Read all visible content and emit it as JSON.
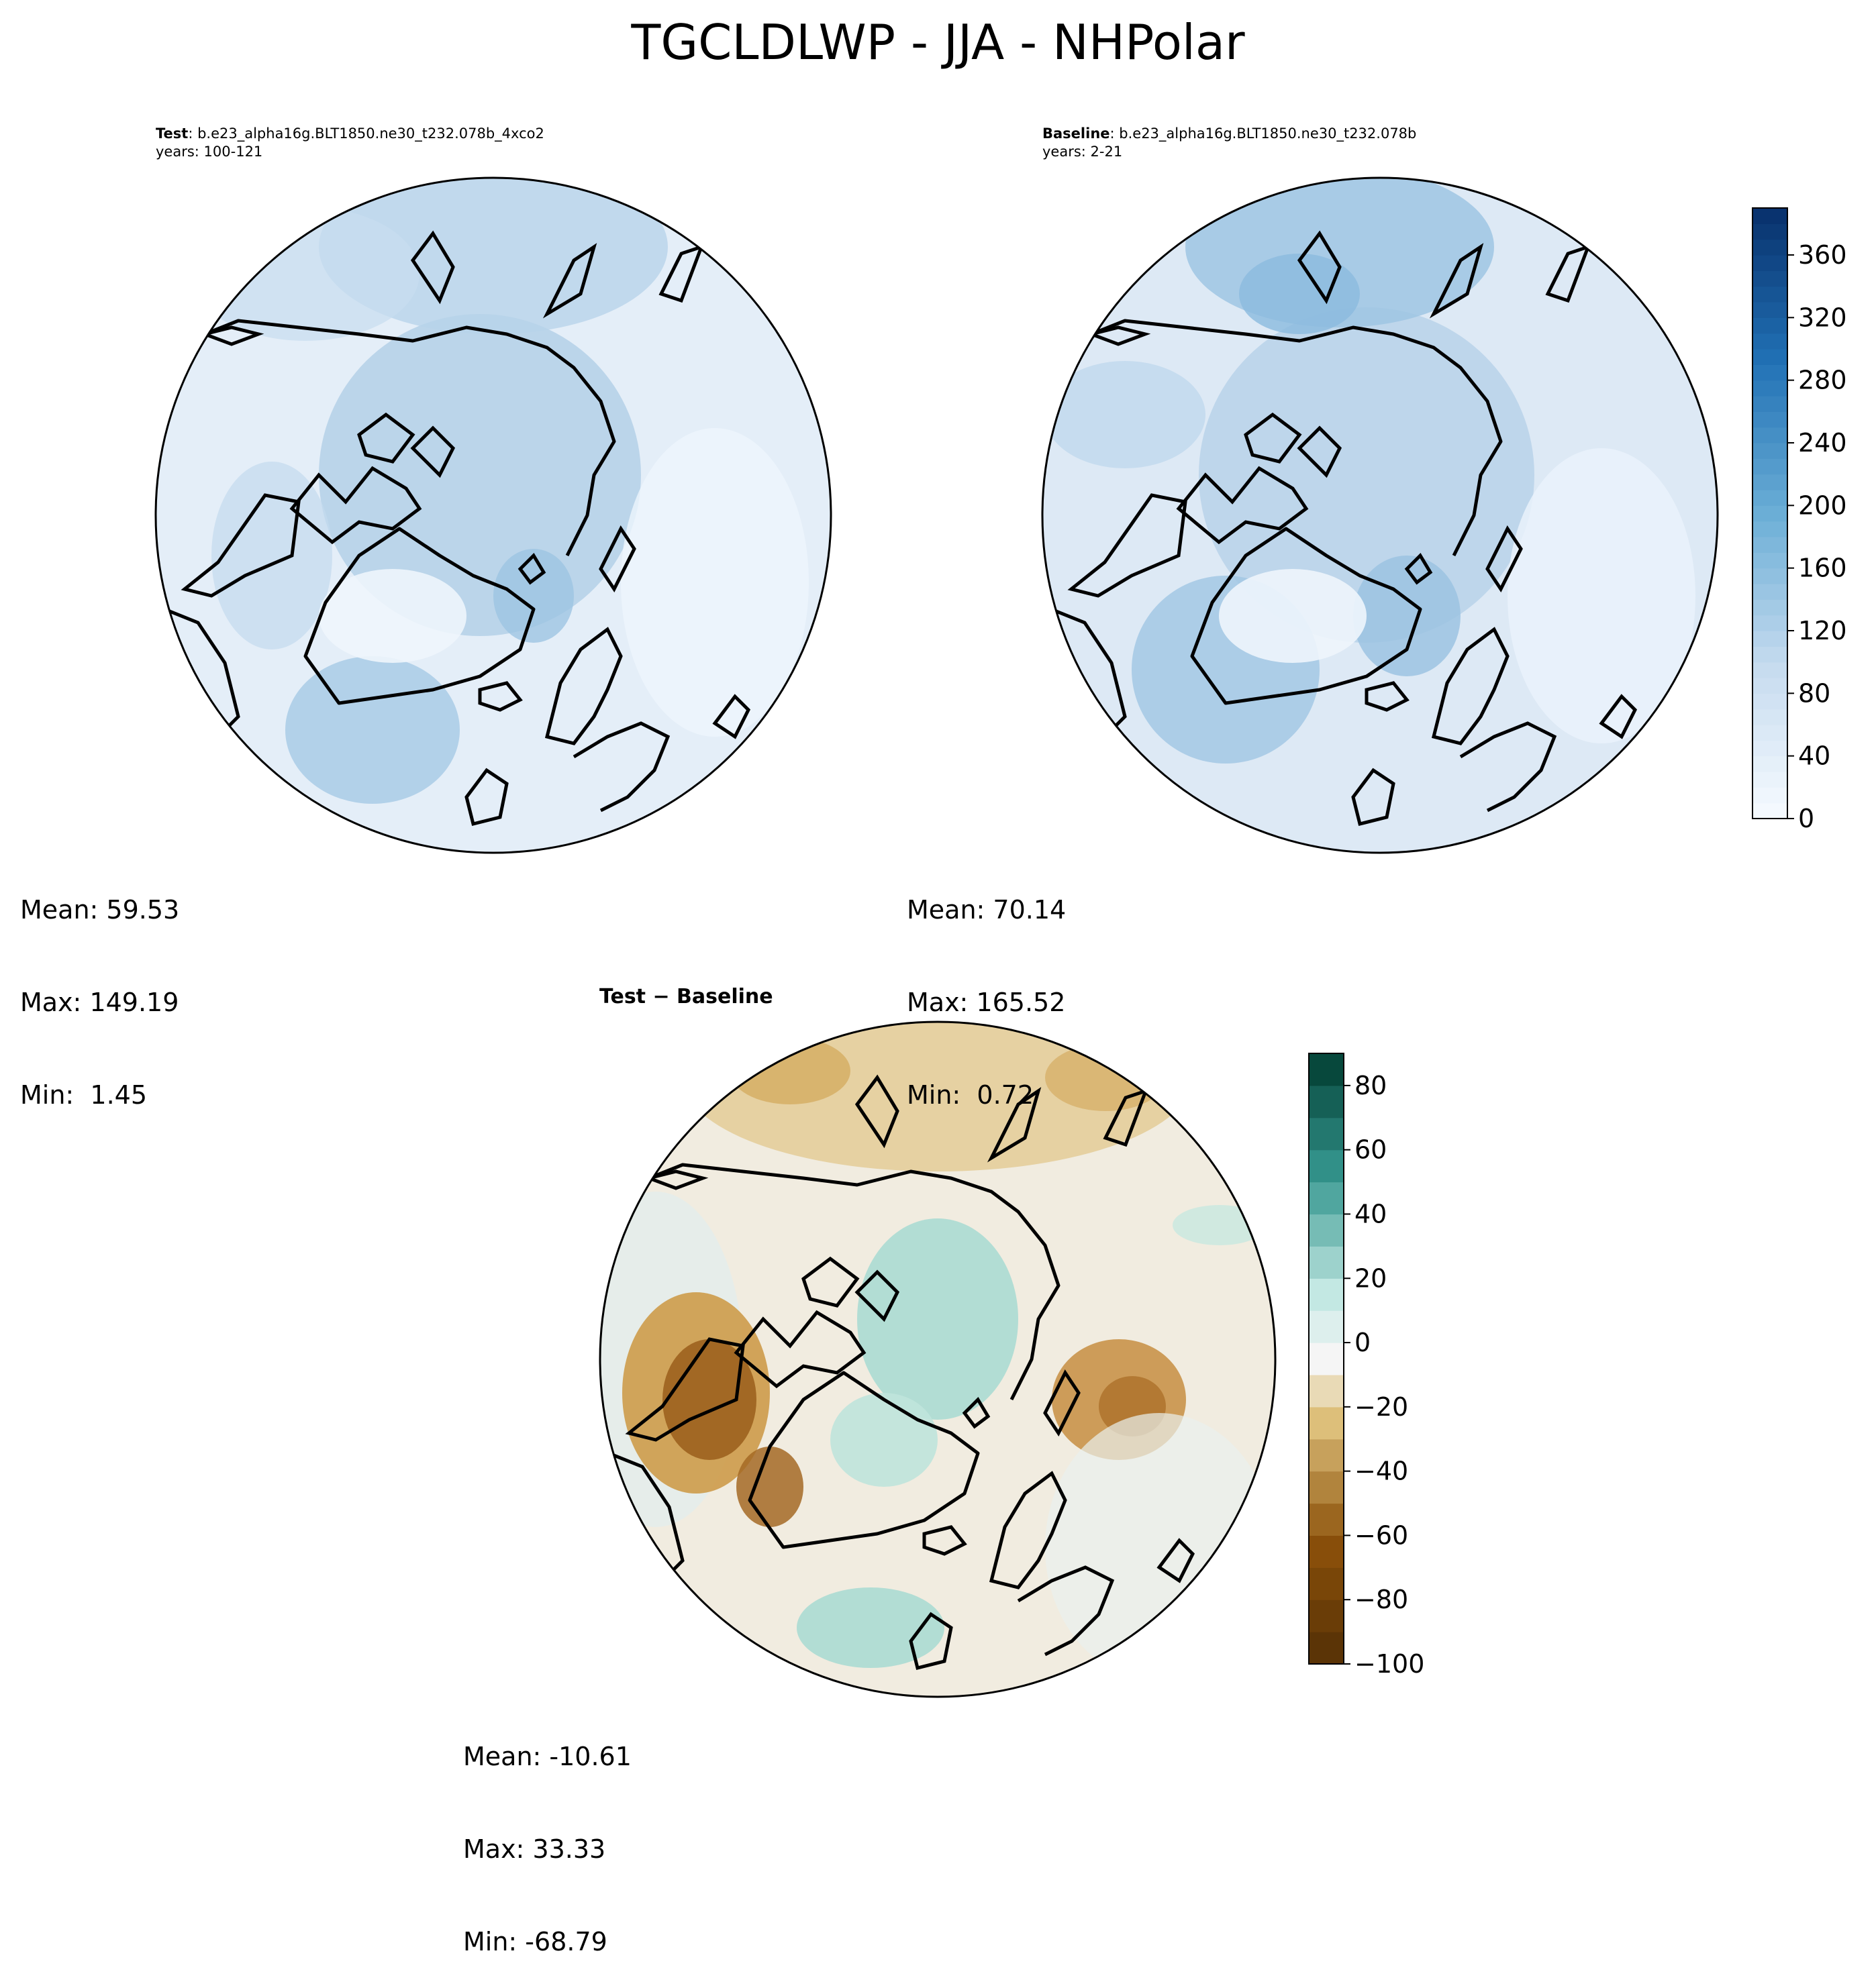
{
  "title": "TGCLDLWP - JJA - NHPolar",
  "panels": [
    {
      "id": "test",
      "label": "Test",
      "case": ": b.e23_alpha16g.BLT1850.ne30_t232.078b_4xco2",
      "years": "years: 100-121",
      "stats": {
        "mean": "Mean: 59.53",
        "max": "Max: 149.19",
        "min": "Min:  1.45"
      }
    },
    {
      "id": "baseline",
      "label": "Baseline",
      "case": ": b.e23_alpha16g.BLT1850.ne30_t232.078b",
      "years": "years: 2-21",
      "stats": {
        "mean": "Mean: 70.14",
        "max": "Max: 165.52",
        "min": "Min:  0.72"
      }
    },
    {
      "id": "diff",
      "label": "Test − Baseline",
      "stats": {
        "mean": "Mean: -10.61",
        "max": "Max: 33.33",
        "min": "Min: -68.79"
      }
    }
  ],
  "colorbars": {
    "absolute": {
      "colormap": "Blues",
      "range": [
        0,
        390
      ],
      "ticks": [
        "0",
        "40",
        "80",
        "120",
        "160",
        "200",
        "240",
        "280",
        "320",
        "360"
      ],
      "tick_values": [
        0,
        40,
        80,
        120,
        160,
        200,
        240,
        280,
        320,
        360
      ]
    },
    "difference": {
      "colormap": "BrBG",
      "range": [
        -100,
        90
      ],
      "ticks": [
        "−100",
        "−80",
        "−60",
        "−40",
        "−20",
        "0",
        "20",
        "40",
        "60",
        "80"
      ],
      "tick_values": [
        -100,
        -80,
        -60,
        -40,
        -20,
        0,
        20,
        40,
        60,
        80
      ]
    }
  },
  "colors": {
    "land_outline": "#000000",
    "blues_low": "#f7fbff",
    "blues_high": "#08306b",
    "brbg_low": "#543005",
    "brbg_mid": "#f5f5f5",
    "brbg_high": "#003c30"
  }
}
